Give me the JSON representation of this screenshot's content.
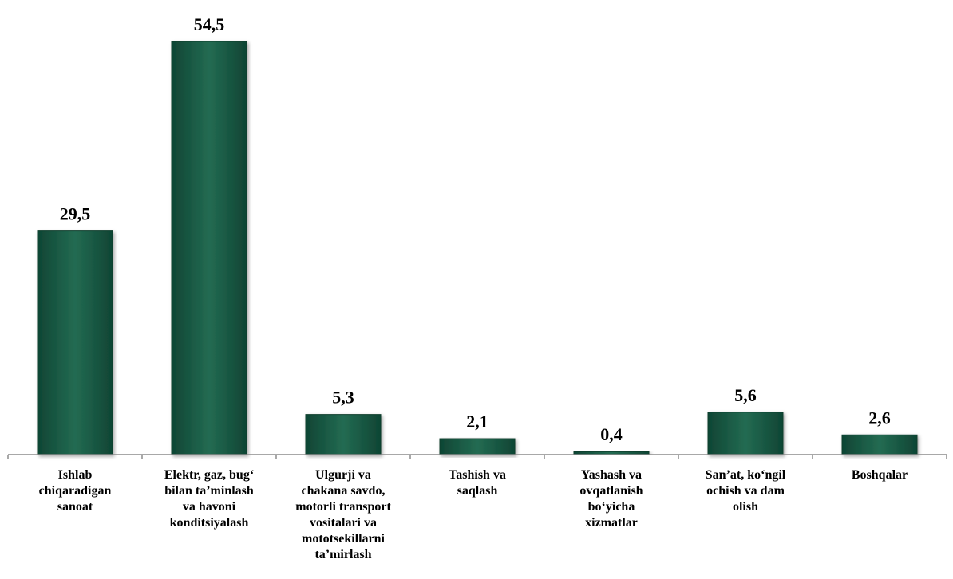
{
  "chart_data": {
    "type": "bar",
    "title": "",
    "xlabel": "",
    "ylabel": "",
    "ylim": [
      0,
      60
    ],
    "grid": false,
    "legend": "none",
    "bar_color": "#1e5e48",
    "bar_edge_color": "#0b3d2c",
    "categories": [
      [
        "Ishlab",
        "chiqaradigan",
        "sanoat"
      ],
      [
        "Elektr, gaz, bug‘",
        "bilan ta’minlash",
        "va havoni",
        "konditsiyalash"
      ],
      [
        "Ulgurji va",
        "chakana savdo,",
        "motorli transport",
        "vositalari va",
        "mototsekillarni",
        "ta’mirlash"
      ],
      [
        "Tashish va",
        "saqlash"
      ],
      [
        "Yashash va",
        "ovqatlanish",
        "bo‘yicha",
        "xizmatlar"
      ],
      [
        "San’at, ko‘ngil",
        "ochish va dam",
        "olish"
      ],
      [
        "Boshqalar"
      ]
    ],
    "values": [
      29.5,
      54.5,
      5.3,
      2.1,
      0.4,
      5.6,
      2.6
    ],
    "data_labels": [
      "29,5",
      "54,5",
      "5,3",
      "2,1",
      "0,4",
      "5,6",
      "2,6"
    ]
  }
}
